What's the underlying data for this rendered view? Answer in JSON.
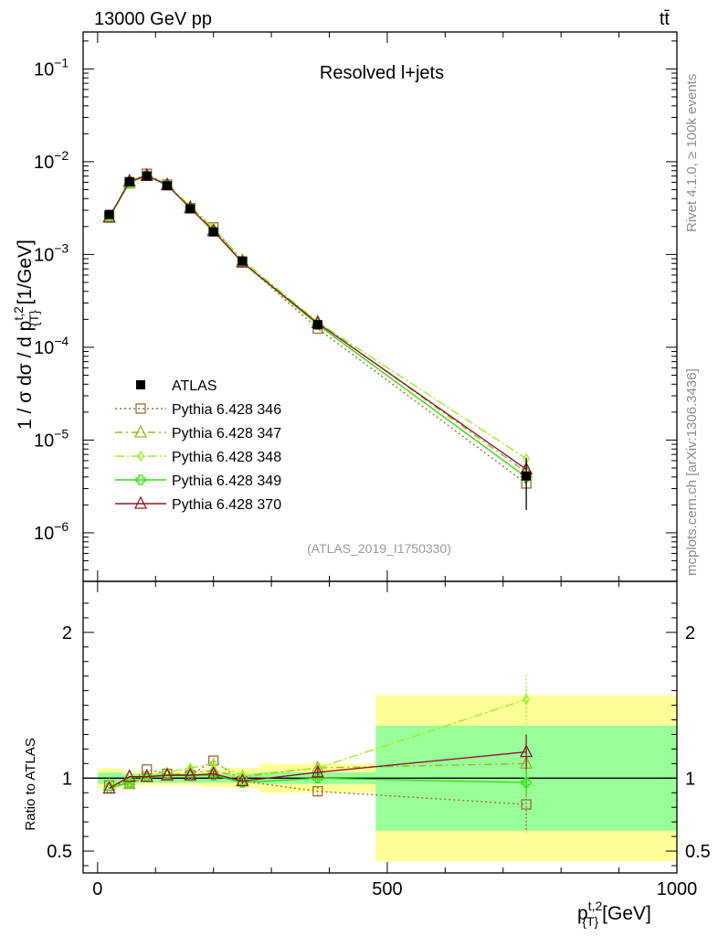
{
  "header": {
    "left": "13000 GeV pp",
    "right": "tt̄"
  },
  "side_labels": {
    "rivet": "Rivet 4.1.0, ≥ 100k events",
    "mcplots": "mcplots.cern.ch [arXiv:1306.3436]"
  },
  "chart_data": {
    "type": "line",
    "title": "Resolved l+jets",
    "analysis_tag": "(ATLAS_2019_I1750330)",
    "xlabel_main": "p",
    "xlabel_sup": "t,2",
    "xlabel_sub": "{T}",
    "xlabel_unit": "[GeV]",
    "ylabel": "1 / σ dσ / d p_{T}^{t,2} [1/GeV]",
    "ylabel_parts": {
      "pre": "1 / σ dσ / d p",
      "sup": "t,2",
      "sub": "{T}",
      "post": " [1/GeV]"
    },
    "ratio_ylabel": "Ratio to ATLAS",
    "xlim": [
      -25,
      1000
    ],
    "ylim": [
      3e-07,
      0.25
    ],
    "ratio_ylim": [
      0.35,
      2.35
    ],
    "x_ticks": [
      {
        "value": 0,
        "label": "0"
      },
      {
        "value": 500,
        "label": "500"
      },
      {
        "value": 1000,
        "label": "1000"
      }
    ],
    "y_ticks": [
      {
        "value": 1e-06,
        "base": "10",
        "exp": "−6"
      },
      {
        "value": 1e-05,
        "base": "10",
        "exp": "−5"
      },
      {
        "value": 0.0001,
        "base": "10",
        "exp": "−4"
      },
      {
        "value": 0.001,
        "base": "10",
        "exp": "−3"
      },
      {
        "value": 0.01,
        "base": "10",
        "exp": "−2"
      },
      {
        "value": 0.1,
        "base": "10",
        "exp": "−1"
      }
    ],
    "ratio_ticks": [
      {
        "value": 0.5,
        "label": "0.5"
      },
      {
        "value": 1,
        "label": "1"
      },
      {
        "value": 2,
        "label": "2"
      }
    ],
    "bins": [
      {
        "lo": 0,
        "hi": 40
      },
      {
        "lo": 40,
        "hi": 70
      },
      {
        "lo": 70,
        "hi": 100
      },
      {
        "lo": 100,
        "hi": 140
      },
      {
        "lo": 140,
        "hi": 180
      },
      {
        "lo": 180,
        "hi": 220
      },
      {
        "lo": 220,
        "hi": 280
      },
      {
        "lo": 280,
        "hi": 480
      },
      {
        "lo": 480,
        "hi": 1000
      }
    ],
    "data": {
      "name": "ATLAS",
      "x": [
        20,
        55,
        85,
        120,
        160,
        200,
        250,
        380,
        740
      ],
      "y": [
        0.0027,
        0.0061,
        0.007,
        0.0055,
        0.0031,
        0.00175,
        0.00085,
        0.000175,
        4.1e-06
      ],
      "stat_band": [
        0.04,
        0.03,
        0.03,
        0.03,
        0.03,
        0.03,
        0.03,
        0.04,
        0.36
      ],
      "total_band": [
        0.07,
        0.05,
        0.05,
        0.05,
        0.05,
        0.06,
        0.07,
        0.1,
        0.57
      ]
    },
    "series": [
      {
        "name": "Pythia 6.428 346",
        "color": "#9c6b3c",
        "dash": "2,3",
        "marker": "square",
        "values": [
          0.00256,
          0.0059,
          0.00742,
          0.00566,
          0.00316,
          0.00196,
          0.00083,
          0.000159,
          3.4e-06
        ],
        "ratio": [
          0.95,
          0.97,
          1.06,
          1.03,
          1.02,
          1.12,
          0.98,
          0.91,
          0.82
        ],
        "ratio_err": [
          0.01,
          0.01,
          0.01,
          0.01,
          0.01,
          0.02,
          0.02,
          0.03,
          0.19
        ]
      },
      {
        "name": "Pythia 6.428 347",
        "color": "#9ab51e",
        "dash": "8,4,2,4",
        "marker": "triangle",
        "values": [
          0.00256,
          0.00583,
          0.00707,
          0.00561,
          0.00322,
          0.00184,
          0.00086,
          0.000187,
          4.5e-06
        ],
        "ratio": [
          0.95,
          0.96,
          1.01,
          1.02,
          1.04,
          1.05,
          1.01,
          1.07,
          1.1
        ],
        "ratio_err": [
          0.01,
          0.01,
          0.01,
          0.01,
          0.01,
          0.02,
          0.02,
          0.03,
          0.12
        ]
      },
      {
        "name": "Pythia 6.428 348",
        "color": "#99ee22",
        "dash": "10,3,2,3",
        "marker": "diamond",
        "values": [
          0.00259,
          0.00592,
          0.00714,
          0.00572,
          0.00332,
          0.00193,
          0.00087,
          0.000187,
          6.3e-06
        ],
        "ratio": [
          0.96,
          0.97,
          1.02,
          1.04,
          1.07,
          1.1,
          1.02,
          1.07,
          1.54
        ],
        "ratio_err": [
          0.01,
          0.01,
          0.01,
          0.01,
          0.01,
          0.02,
          0.02,
          0.03,
          0.17
        ]
      },
      {
        "name": "Pythia 6.428 349",
        "color": "#33dd11",
        "dash": "",
        "marker": "cross",
        "values": [
          0.0025,
          0.00592,
          0.00707,
          0.00561,
          0.00316,
          0.00179,
          0.00082,
          0.000175,
          3.98e-06
        ],
        "ratio": [
          0.93,
          0.97,
          1.01,
          1.02,
          1.02,
          1.02,
          0.97,
          1.0,
          0.97
        ],
        "ratio_err": [
          0.01,
          0.01,
          0.01,
          0.01,
          0.01,
          0.02,
          0.02,
          0.03,
          0.09
        ]
      },
      {
        "name": "Pythia 6.428 370",
        "color": "#8b1a2a",
        "dash": "",
        "marker": "triangle",
        "values": [
          0.0025,
          0.00616,
          0.00707,
          0.00561,
          0.00316,
          0.00179,
          0.00082,
          0.000182,
          4.84e-06
        ],
        "ratio": [
          0.93,
          1.01,
          1.01,
          1.02,
          1.02,
          1.03,
          0.98,
          1.04,
          1.18
        ],
        "ratio_err": [
          0.01,
          0.01,
          0.01,
          0.01,
          0.01,
          0.02,
          0.02,
          0.03,
          0.12
        ]
      }
    ],
    "colors": {
      "data": "#000000",
      "band_outer": "#ffff99",
      "band_inner": "#99ff99"
    }
  }
}
